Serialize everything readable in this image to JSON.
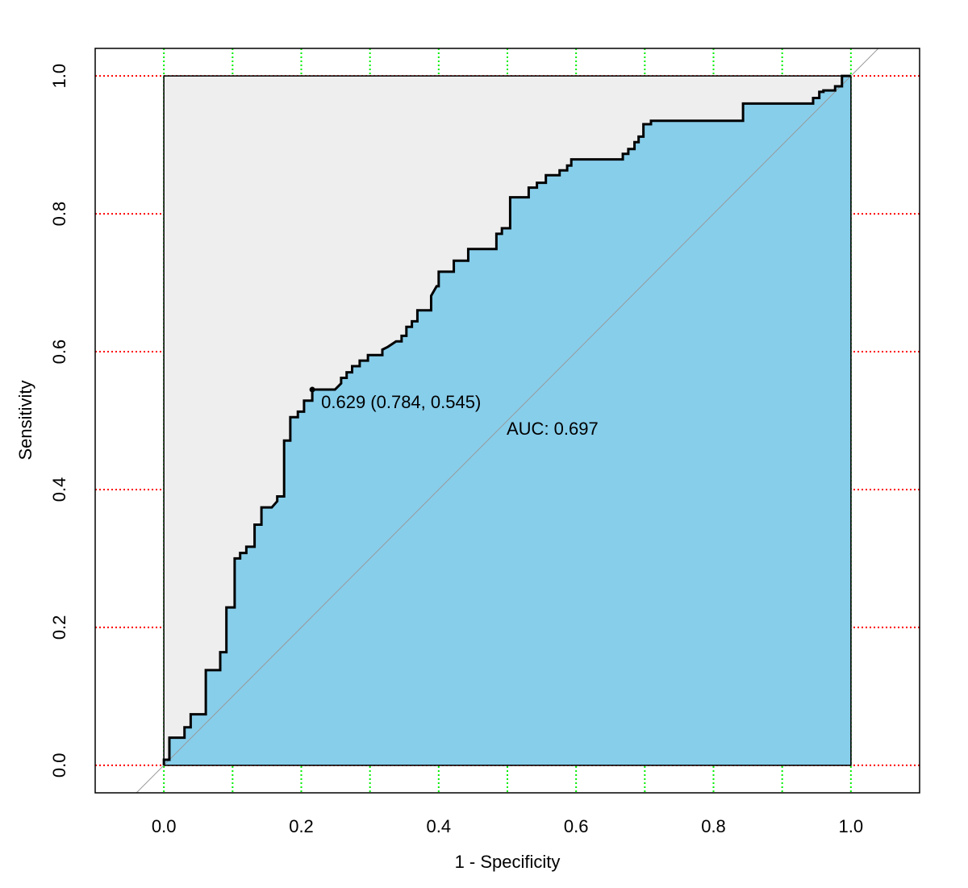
{
  "chart_data": {
    "type": "line",
    "xlabel": "1 - Specificity",
    "ylabel": "Sensitivity",
    "xlim": [
      -0.1,
      1.1
    ],
    "ylim": [
      -0.04,
      1.04
    ],
    "xticks": [
      {
        "value": 0,
        "label": "0.0"
      },
      0.2,
      0.4,
      0.6,
      0.8,
      {
        "value": 1,
        "label": "1.0"
      }
    ],
    "yticks": [
      {
        "value": 0,
        "label": "0.0"
      },
      0.2,
      0.4,
      0.6,
      0.8,
      {
        "value": 1,
        "label": "1.0"
      }
    ],
    "xgrid": [
      0,
      0.1,
      0.2,
      0.3,
      0.4,
      0.5,
      0.6,
      0.7,
      0.8,
      0.9,
      1
    ],
    "ygrid": [
      0,
      0.2,
      0.4,
      0.6,
      0.8,
      1
    ],
    "xgrid_color": "#00ee00",
    "ygrid_color": "#ff0000",
    "color": "#000000",
    "auc_polygon_color": "#87ceeb",
    "max_auc_polygon_color": "#eeeeee",
    "x": [
      0,
      0,
      0.008,
      0.008,
      0.03,
      0.03,
      0.039,
      0.039,
      0.061,
      0.061,
      0.082,
      0.082,
      0.091,
      0.091,
      0.103,
      0.103,
      0.111,
      0.111,
      0.12,
      0.12,
      0.132,
      0.132,
      0.142,
      0.142,
      0.157,
      0.165,
      0.165,
      0.175,
      0.175,
      0.184,
      0.184,
      0.195,
      0.195,
      0.204,
      0.204,
      0.216,
      0.216,
      0.249,
      0.258,
      0.258,
      0.266,
      0.266,
      0.274,
      0.274,
      0.285,
      0.285,
      0.297,
      0.297,
      0.318,
      0.318,
      0.326,
      0.338,
      0.346,
      0.346,
      0.353,
      0.353,
      0.361,
      0.361,
      0.369,
      0.369,
      0.389,
      0.389,
      0.397,
      0.4,
      0.4,
      0.422,
      0.422,
      0.443,
      0.443,
      0.484,
      0.484,
      0.492,
      0.492,
      0.504,
      0.504,
      0.531,
      0.531,
      0.543,
      0.543,
      0.556,
      0.556,
      0.576,
      0.576,
      0.587,
      0.587,
      0.593,
      0.593,
      0.668,
      0.668,
      0.676,
      0.676,
      0.685,
      0.685,
      0.691,
      0.691,
      0.698,
      0.698,
      0.709,
      0.709,
      0.843,
      0.843,
      0.945,
      0.945,
      0.954,
      0.954,
      0.96,
      0.96,
      0.977,
      0.977,
      0.987,
      0.987,
      1
    ],
    "values": [
      0,
      0.008,
      0.008,
      0.04,
      0.04,
      0.055,
      0.055,
      0.074,
      0.074,
      0.138,
      0.138,
      0.164,
      0.164,
      0.229,
      0.229,
      0.3,
      0.3,
      0.308,
      0.308,
      0.317,
      0.317,
      0.349,
      0.349,
      0.374,
      0.374,
      0.383,
      0.39,
      0.39,
      0.471,
      0.471,
      0.505,
      0.505,
      0.513,
      0.513,
      0.529,
      0.529,
      0.545,
      0.545,
      0.554,
      0.562,
      0.562,
      0.57,
      0.57,
      0.579,
      0.579,
      0.587,
      0.587,
      0.595,
      0.595,
      0.603,
      0.607,
      0.615,
      0.615,
      0.623,
      0.623,
      0.636,
      0.636,
      0.644,
      0.644,
      0.66,
      0.66,
      0.681,
      0.695,
      0.695,
      0.716,
      0.716,
      0.732,
      0.732,
      0.749,
      0.749,
      0.771,
      0.771,
      0.779,
      0.779,
      0.824,
      0.824,
      0.838,
      0.838,
      0.845,
      0.845,
      0.856,
      0.856,
      0.863,
      0.863,
      0.87,
      0.87,
      0.879,
      0.879,
      0.887,
      0.887,
      0.894,
      0.894,
      0.904,
      0.904,
      0.912,
      0.912,
      0.93,
      0.93,
      0.935,
      0.935,
      0.96,
      0.96,
      0.968,
      0.968,
      0.977,
      0.977,
      0.979,
      0.979,
      0.985,
      0.985,
      1,
      1
    ],
    "best_point": {
      "x": 0.216,
      "y": 0.545,
      "label": "0.629 (0.784, 0.545)"
    },
    "auc_label": "AUC: 0.697"
  }
}
